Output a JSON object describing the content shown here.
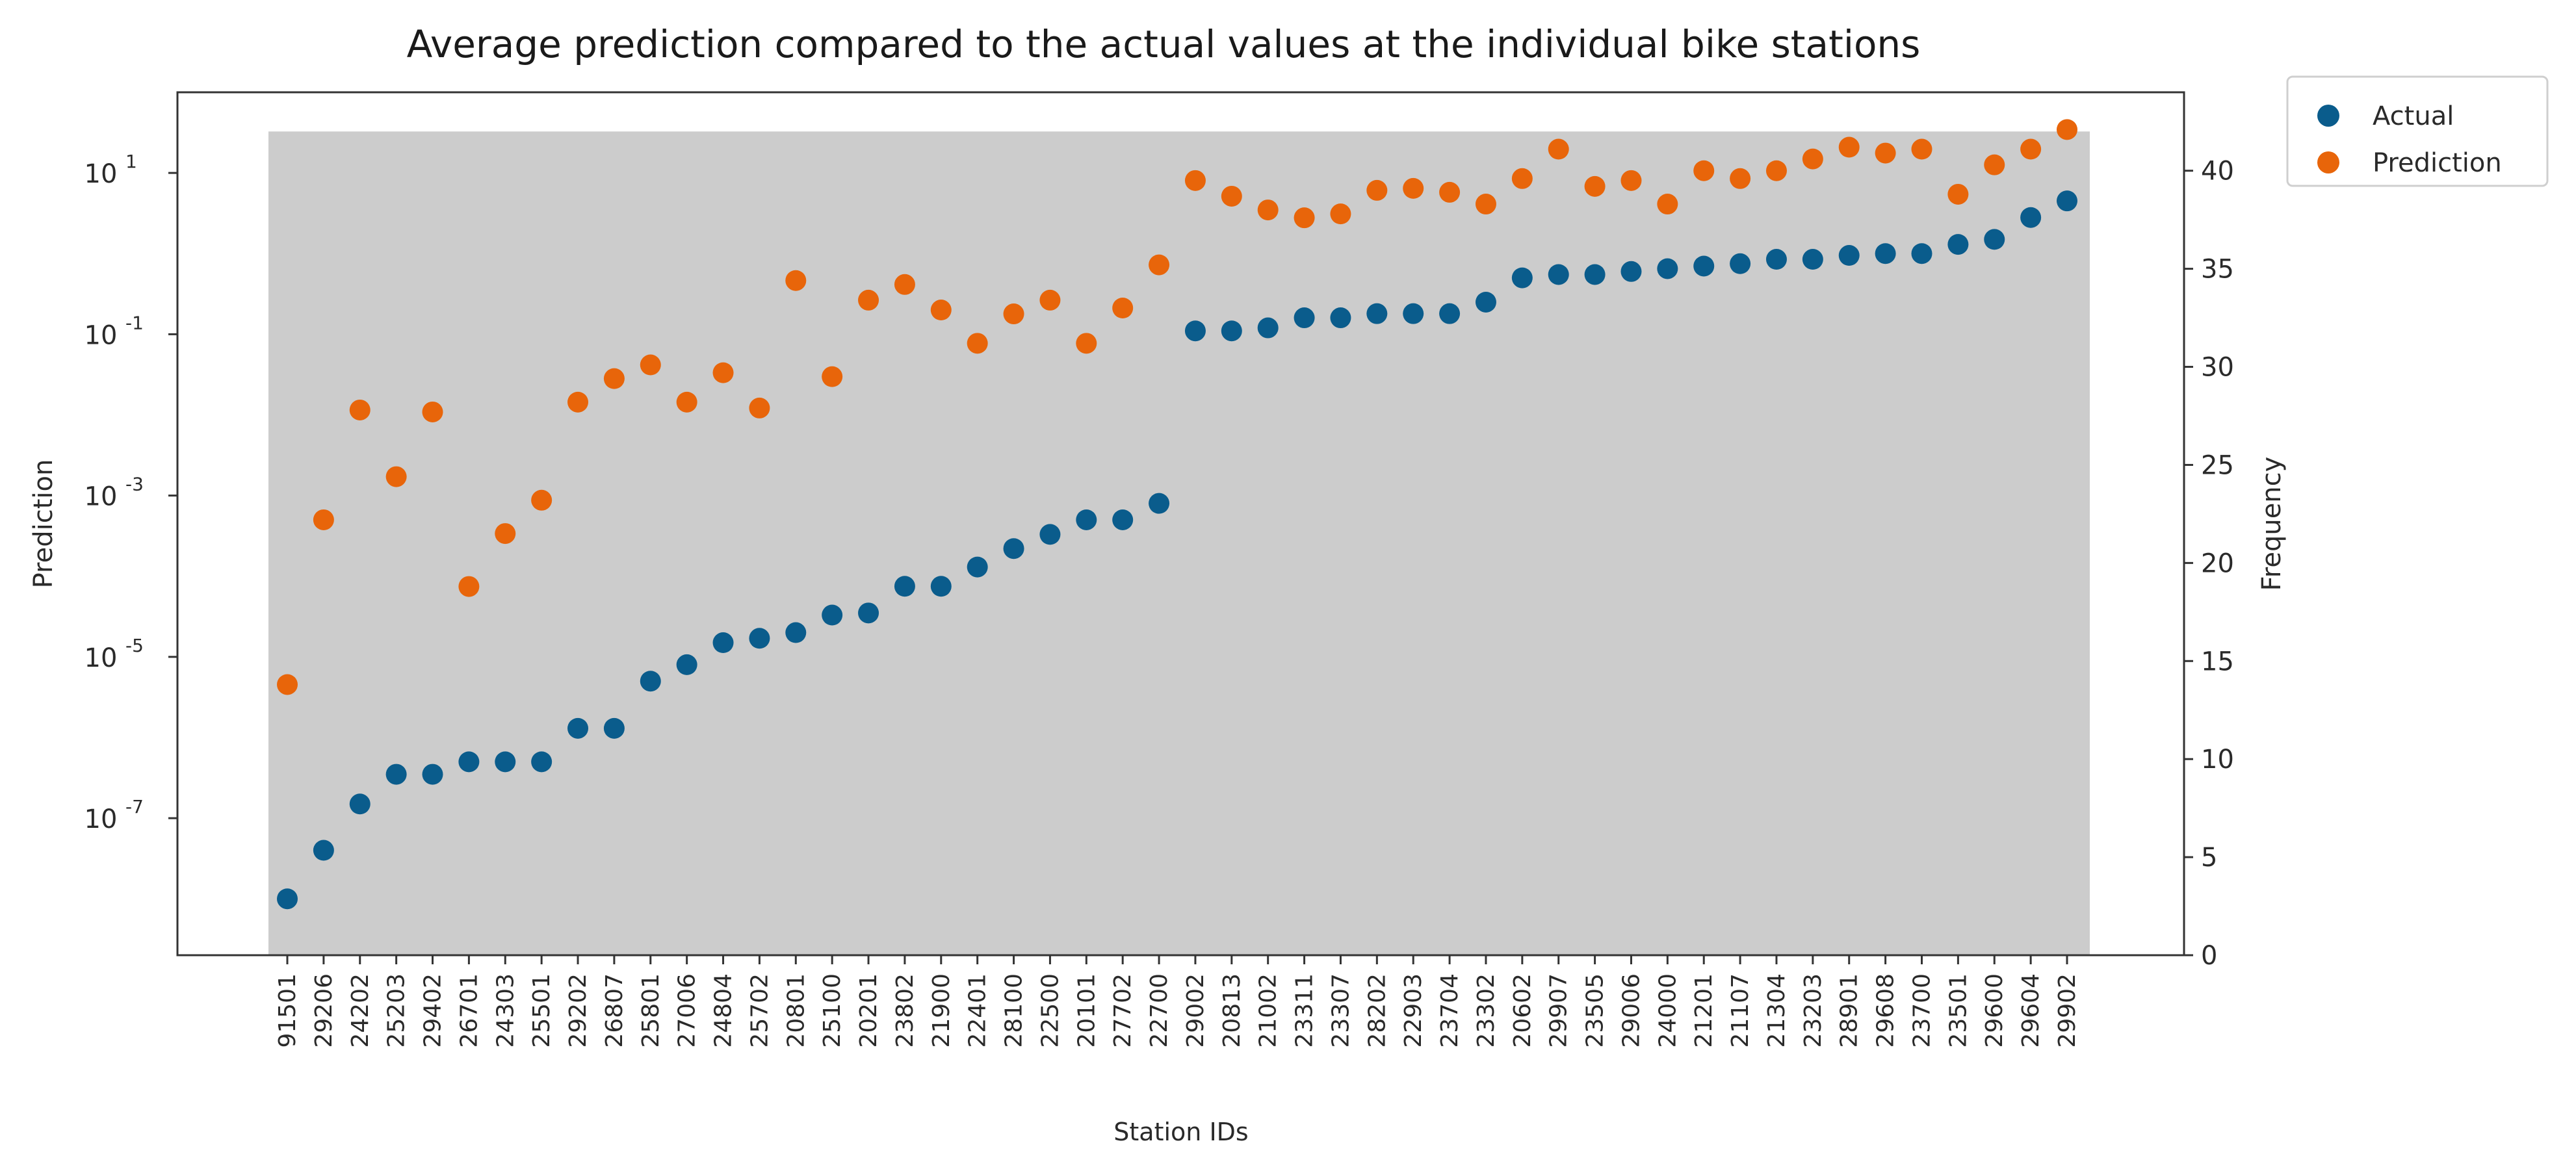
{
  "chart_data": {
    "type": "scatter",
    "title": "Average prediction compared to the actual values at the individual bike stations",
    "xlabel": "Station IDs",
    "ylabel": "Prediction",
    "y2label": "Frequency",
    "yscale": "log",
    "ylim": [
      2e-09,
      100
    ],
    "y2lim": [
      0,
      44
    ],
    "y_ticks": [
      {
        "exp": "1",
        "value": 10
      },
      {
        "exp": "-1",
        "value": 0.1
      },
      {
        "exp": "-3",
        "value": 0.001
      },
      {
        "exp": "-5",
        "value": 1e-05
      },
      {
        "exp": "-7",
        "value": 1e-07
      }
    ],
    "y2_ticks": [
      0,
      5,
      10,
      15,
      20,
      25,
      30,
      35,
      40
    ],
    "background_band": {
      "y2_top": 42
    },
    "legend": {
      "position": "outside-right",
      "entries": [
        "Actual",
        "Prediction"
      ]
    },
    "categories": [
      "91501",
      "29206",
      "24202",
      "25203",
      "29402",
      "26701",
      "24303",
      "25501",
      "29202",
      "26807",
      "25801",
      "27006",
      "24804",
      "25702",
      "20801",
      "25100",
      "20201",
      "23802",
      "21900",
      "22401",
      "28100",
      "22500",
      "20101",
      "27702",
      "22700",
      "29002",
      "20813",
      "21002",
      "23311",
      "23307",
      "28202",
      "22903",
      "23704",
      "23302",
      "20602",
      "29907",
      "23505",
      "29006",
      "24000",
      "21201",
      "21107",
      "21304",
      "23203",
      "28901",
      "29608",
      "23700",
      "23501",
      "29600",
      "29604",
      "29902"
    ],
    "series": [
      {
        "name": "Actual",
        "color": "#0a5c8c",
        "axis": "left",
        "values": [
          1e-08,
          4e-08,
          1.5e-07,
          3.5e-07,
          3.5e-07,
          5e-07,
          5e-07,
          5e-07,
          1.3e-06,
          1.3e-06,
          5e-06,
          8e-06,
          1.5e-05,
          1.7e-05,
          2e-05,
          3.3e-05,
          3.5e-05,
          7.5e-05,
          7.5e-05,
          0.00013,
          0.00022,
          0.00033,
          0.0005,
          0.0005,
          0.0008,
          0.11,
          0.11,
          0.12,
          0.16,
          0.16,
          0.18,
          0.18,
          0.18,
          0.25,
          0.5,
          0.55,
          0.55,
          0.6,
          0.65,
          0.7,
          0.75,
          0.85,
          0.85,
          0.95,
          1.0,
          1.0,
          1.3,
          1.5,
          2.8,
          4.5
        ]
      },
      {
        "name": "Prediction",
        "color": "#e8650a",
        "axis": "right",
        "values": [
          13.8,
          22.2,
          27.8,
          24.4,
          27.7,
          18.8,
          21.5,
          23.2,
          28.2,
          29.4,
          30.1,
          28.2,
          29.7,
          27.9,
          34.4,
          29.5,
          33.4,
          34.2,
          32.9,
          31.2,
          32.7,
          33.4,
          31.2,
          33.0,
          35.2,
          39.5,
          38.7,
          38.0,
          37.6,
          37.8,
          39.0,
          39.1,
          38.9,
          38.3,
          39.6,
          41.1,
          39.2,
          39.5,
          38.3,
          40.0,
          39.6,
          40.0,
          40.6,
          41.2,
          40.9,
          41.1,
          38.8,
          40.3,
          41.1,
          42.1
        ]
      }
    ]
  }
}
